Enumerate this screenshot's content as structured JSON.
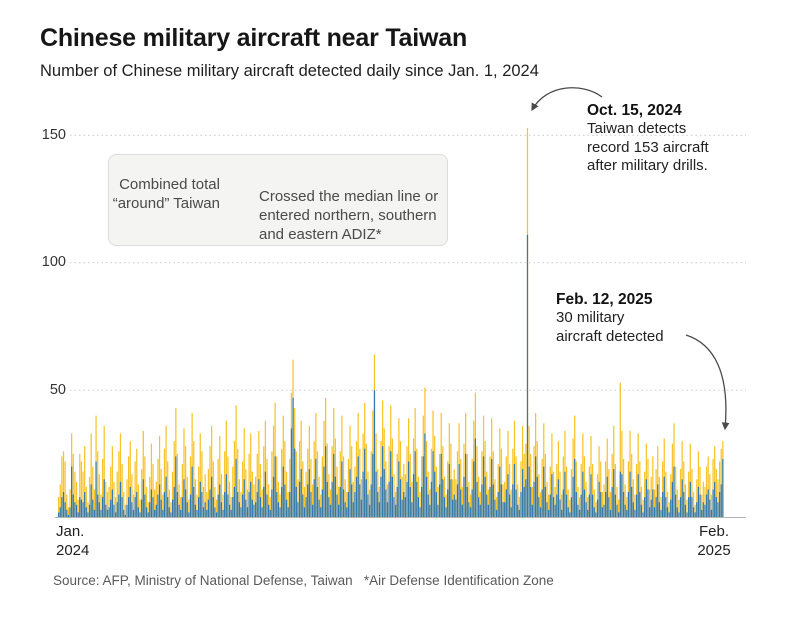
{
  "header": {
    "title": "Chinese military aircraft near Taiwan",
    "subtitle": "Number of Chinese military aircraft detected daily since Jan. 1, 2024"
  },
  "legend": {
    "combined_line1": "Combined total",
    "combined_line2": "“around” Taiwan",
    "crossed_line1": "Crossed the median line or",
    "crossed_line2": "entered northern, southern",
    "crossed_line3": "and eastern ADIZ*"
  },
  "annotations": {
    "oct15": {
      "date": "Oct. 15, 2024",
      "line1": "Taiwan detects",
      "line2": "record 153 aircraft",
      "line3": "after military drills."
    },
    "feb12": {
      "date": "Feb. 12, 2025",
      "line1": "30 military",
      "line2": "aircraft detected"
    }
  },
  "axes": {
    "y150": "150",
    "y100": "100",
    "y50": "50",
    "x_left_line1": "Jan.",
    "x_left_line2": "2024",
    "x_right_line1": "Feb.",
    "x_right_line2": "2025"
  },
  "source": "Source: AFP, Ministry of National Defense, Taiwan   *Air Defense Identification Zone",
  "chart_data": {
    "type": "bar",
    "stacked": true,
    "title": "Chinese military aircraft near Taiwan",
    "subtitle": "Number of Chinese military aircraft detected daily since Jan. 1, 2024",
    "x_start_date": "2024-01-01",
    "x_end_date": "2025-02-12",
    "x_tick_labels": [
      "Jan. 2024",
      "Feb. 2025"
    ],
    "y_ticks": [
      50,
      100,
      150
    ],
    "ylim": [
      0,
      160
    ],
    "grid": "dotted horizontal",
    "legend_position": "top-left box",
    "colors": {
      "combined": "#f8c32a",
      "crossed": "#3379ae"
    },
    "annotated_points": [
      {
        "date": "Oct. 15, 2024",
        "total": 153,
        "crossed": 111,
        "note": "Taiwan detects record 153 aircraft after military drills."
      },
      {
        "date": "Feb. 12, 2025",
        "total": 30,
        "note": "30 military aircraft detected"
      }
    ],
    "series": [
      {
        "name": "Combined total “around” Taiwan",
        "color": "#f8c32a",
        "values": [
          8,
          13,
          24,
          26,
          22,
          9,
          4,
          11,
          33,
          25,
          18,
          14,
          7,
          25,
          22,
          18,
          28,
          12,
          6,
          16,
          33,
          20,
          11,
          40,
          26,
          17,
          9,
          23,
          36,
          14,
          10,
          12,
          20,
          28,
          14,
          8,
          18,
          26,
          33,
          21,
          10,
          5,
          15,
          24,
          30,
          17,
          9,
          22,
          27,
          13,
          7,
          19,
          34,
          24,
          12,
          6,
          16,
          29,
          21,
          11,
          14,
          23,
          32,
          19,
          9,
          27,
          36,
          22,
          11,
          6,
          18,
          30,
          43,
          25,
          13,
          8,
          21,
          35,
          28,
          16,
          7,
          24,
          41,
          30,
          15,
          9,
          20,
          33,
          26,
          12,
          17,
          10,
          19,
          28,
          36,
          22,
          12,
          7,
          23,
          32,
          17,
          9,
          26,
          38,
          24,
          14,
          8,
          20,
          30,
          44,
          27,
          15,
          10,
          22,
          35,
          19,
          11,
          25,
          33,
          18,
          13,
          16,
          25,
          34,
          21,
          11,
          28,
          38,
          23,
          13,
          8,
          26,
          36,
          45,
          24,
          14,
          9,
          27,
          40,
          30,
          18,
          10,
          23,
          49,
          62,
          43,
          26,
          15,
          30,
          38,
          22,
          12,
          18,
          27,
          36,
          23,
          13,
          30,
          41,
          26,
          16,
          9,
          24,
          38,
          47,
          29,
          17,
          11,
          28,
          43,
          31,
          20,
          12,
          26,
          40,
          24,
          15,
          10,
          23,
          36,
          28,
          14,
          20,
          30,
          41,
          27,
          15,
          33,
          45,
          29,
          18,
          11,
          26,
          42,
          64,
          33,
          19,
          12,
          30,
          46,
          35,
          22,
          13,
          28,
          44,
          31,
          17,
          10,
          25,
          39,
          30,
          16,
          21,
          17,
          28,
          39,
          25,
          14,
          31,
          43,
          27,
          16,
          10,
          24,
          40,
          51,
          30,
          18,
          11,
          27,
          42,
          32,
          20,
          12,
          25,
          41,
          28,
          16,
          9,
          22,
          37,
          29,
          15,
          19,
          15,
          26,
          37,
          23,
          12,
          29,
          41,
          25,
          14,
          9,
          23,
          38,
          49,
          28,
          16,
          10,
          26,
          40,
          30,
          18,
          11,
          24,
          39,
          26,
          15,
          8,
          21,
          35,
          27,
          13,
          14,
          24,
          34,
          21,
          11,
          27,
          38,
          24,
          13,
          8,
          22,
          36,
          25,
          29,
          153,
          36,
          25,
          12,
          28,
          41,
          30,
          17,
          10,
          23,
          37,
          25,
          14,
          9,
          20,
          33,
          18,
          12,
          21,
          30,
          18,
          9,
          24,
          34,
          20,
          11,
          7,
          19,
          31,
          40,
          22,
          12,
          8,
          21,
          33,
          24,
          14,
          8,
          20,
          32,
          21,
          11,
          6,
          17,
          28,
          22,
          10,
          13,
          22,
          31,
          19,
          10,
          25,
          36,
          21,
          12,
          7,
          53,
          34,
          23,
          13,
          8,
          22,
          34,
          25,
          15,
          9,
          21,
          33,
          22,
          12,
          7,
          18,
          29,
          23,
          11,
          16,
          24,
          11,
          19,
          28,
          16,
          8,
          22,
          31,
          18,
          10,
          6,
          17,
          29,
          37,
          20,
          11,
          7,
          19,
          30,
          22,
          13,
          7,
          18,
          29,
          19,
          10,
          5,
          15,
          26,
          20,
          9,
          14,
          12,
          20,
          24,
          17,
          9,
          23,
          28,
          19,
          15,
          22,
          27,
          30
        ]
      },
      {
        "name": "Crossed the median line or entered northern, southern and eastern ADIZ",
        "color": "#3379ae",
        "values": [
          2,
          4,
          8,
          10,
          6,
          3,
          1,
          4,
          20,
          9,
          6,
          5,
          2,
          8,
          7,
          6,
          10,
          4,
          2,
          5,
          13,
          7,
          3,
          22,
          9,
          6,
          3,
          8,
          15,
          5,
          3,
          4,
          7,
          11,
          5,
          2,
          6,
          9,
          14,
          8,
          3,
          1,
          5,
          8,
          12,
          6,
          3,
          8,
          10,
          4,
          2,
          7,
          15,
          9,
          4,
          2,
          6,
          11,
          8,
          3,
          5,
          9,
          13,
          7,
          3,
          10,
          16,
          8,
          4,
          2,
          7,
          12,
          24,
          10,
          5,
          3,
          8,
          15,
          11,
          6,
          2,
          9,
          20,
          12,
          5,
          3,
          8,
          14,
          10,
          4,
          6,
          3,
          7,
          11,
          16,
          8,
          4,
          2,
          9,
          13,
          6,
          3,
          10,
          17,
          9,
          5,
          3,
          8,
          12,
          23,
          10,
          6,
          4,
          9,
          15,
          7,
          4,
          10,
          14,
          7,
          5,
          6,
          10,
          15,
          8,
          4,
          12,
          18,
          9,
          5,
          3,
          11,
          16,
          24,
          10,
          6,
          4,
          12,
          20,
          13,
          7,
          4,
          10,
          35,
          47,
          27,
          12,
          6,
          14,
          19,
          9,
          4,
          8,
          13,
          19,
          10,
          5,
          15,
          23,
          12,
          7,
          4,
          11,
          20,
          28,
          14,
          8,
          5,
          14,
          25,
          16,
          9,
          5,
          12,
          22,
          11,
          6,
          4,
          10,
          19,
          13,
          6,
          10,
          16,
          24,
          13,
          7,
          18,
          27,
          15,
          9,
          5,
          13,
          25,
          50,
          18,
          10,
          6,
          16,
          28,
          19,
          11,
          6,
          14,
          26,
          16,
          8,
          5,
          12,
          22,
          15,
          7,
          10,
          8,
          14,
          22,
          12,
          6,
          17,
          26,
          14,
          8,
          4,
          12,
          24,
          33,
          16,
          9,
          5,
          14,
          26,
          18,
          10,
          5,
          13,
          25,
          15,
          8,
          4,
          11,
          21,
          15,
          7,
          9,
          7,
          13,
          21,
          11,
          5,
          16,
          25,
          12,
          6,
          4,
          11,
          22,
          31,
          14,
          8,
          5,
          13,
          24,
          16,
          9,
          5,
          12,
          23,
          13,
          7,
          3,
          10,
          20,
          13,
          6,
          6,
          11,
          17,
          9,
          4,
          13,
          21,
          11,
          5,
          3,
          10,
          19,
          12,
          15,
          111,
          20,
          12,
          5,
          14,
          24,
          16,
          8,
          4,
          11,
          20,
          12,
          6,
          3,
          9,
          17,
          8,
          5,
          9,
          15,
          7,
          3,
          11,
          18,
          9,
          4,
          2,
          8,
          16,
          23,
          10,
          5,
          3,
          9,
          18,
          11,
          6,
          3,
          9,
          17,
          9,
          4,
          2,
          7,
          14,
          10,
          4,
          5,
          10,
          16,
          8,
          3,
          12,
          19,
          9,
          5,
          2,
          18,
          17,
          10,
          5,
          3,
          10,
          18,
          12,
          6,
          3,
          9,
          17,
          10,
          5,
          2,
          8,
          15,
          11,
          4,
          7,
          11,
          4,
          8,
          13,
          6,
          3,
          10,
          16,
          8,
          4,
          2,
          7,
          14,
          20,
          9,
          4,
          2,
          8,
          15,
          10,
          5,
          2,
          8,
          14,
          8,
          4,
          2,
          6,
          12,
          9,
          3,
          6,
          5,
          9,
          11,
          7,
          3,
          11,
          14,
          8,
          6,
          10,
          13,
          23
        ]
      }
    ]
  }
}
